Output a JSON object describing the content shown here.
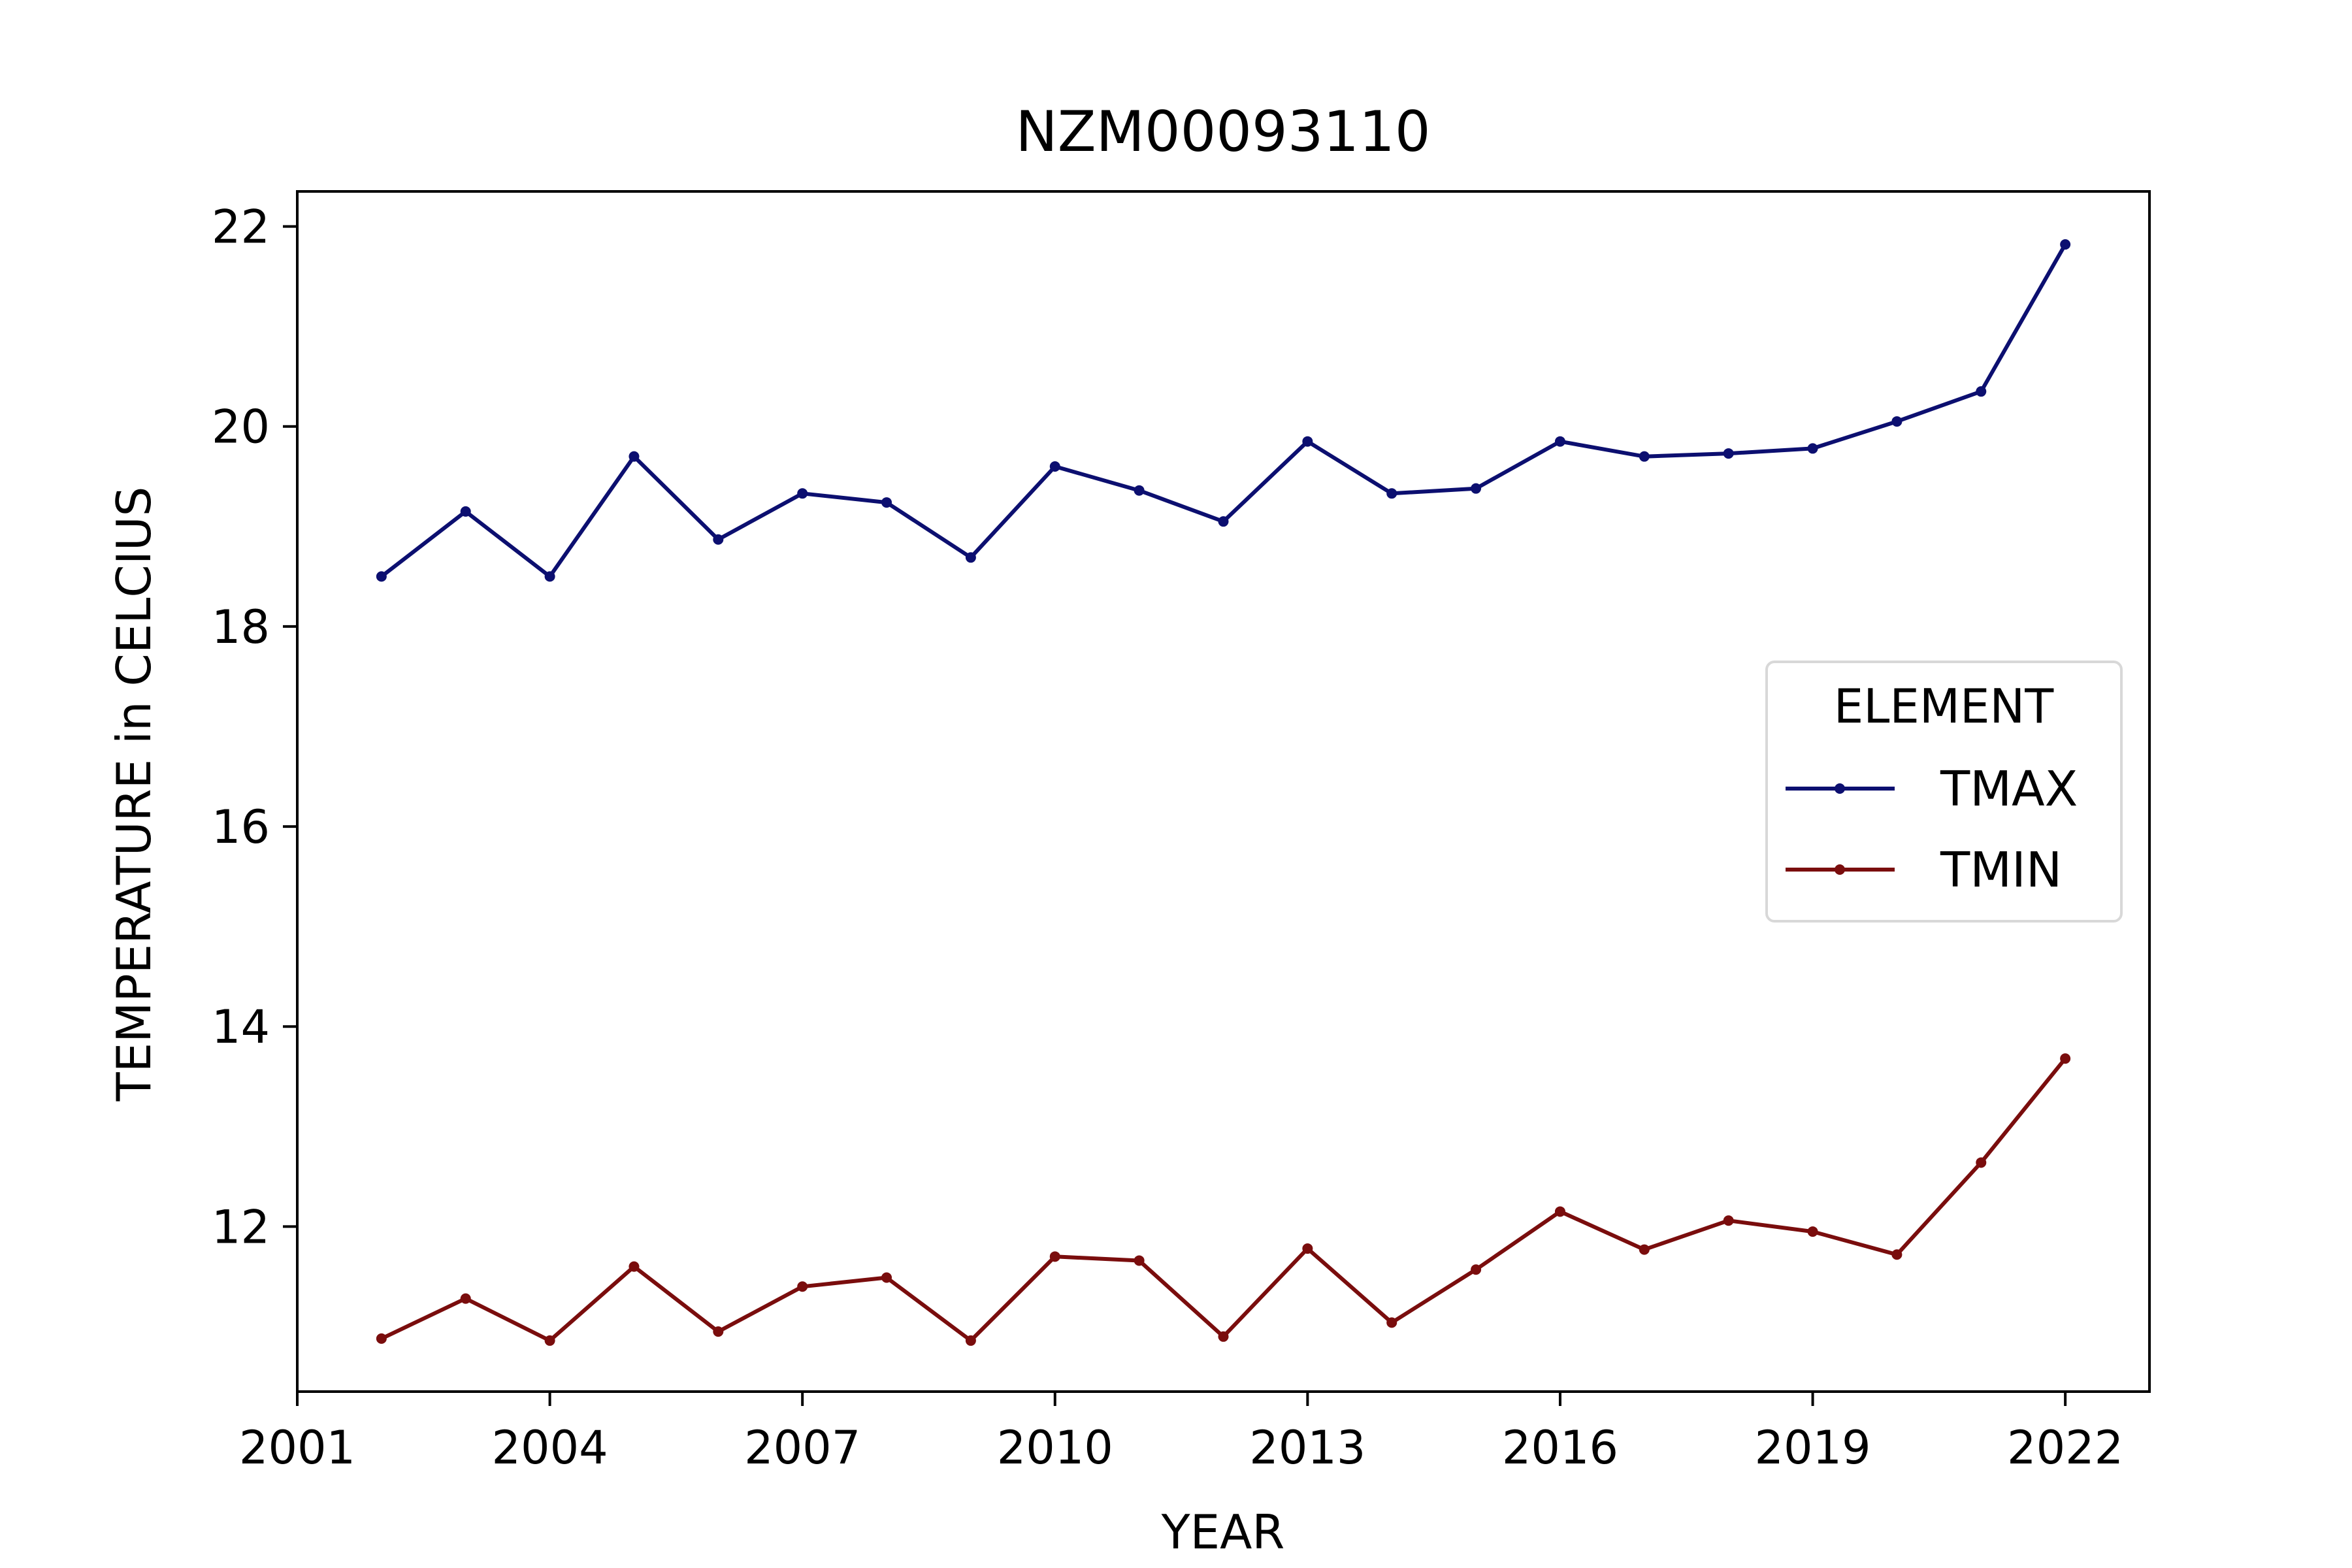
{
  "chart_data": {
    "type": "line",
    "title": "NZM00093110",
    "xlabel": "YEAR",
    "ylabel": "TEMPERATURE in CELCIUS",
    "xlim": [
      2001,
      2023
    ],
    "ylim": [
      10.35,
      22.35
    ],
    "xticks": [
      2001,
      2004,
      2007,
      2010,
      2013,
      2016,
      2019,
      2022
    ],
    "yticks": [
      12,
      14,
      16,
      18,
      20,
      22
    ],
    "grid": false,
    "legend": {
      "title": "ELEMENT",
      "placement": "center-right"
    },
    "x": [
      2002,
      2003,
      2004,
      2005,
      2006,
      2007,
      2008,
      2009,
      2010,
      2011,
      2012,
      2013,
      2014,
      2015,
      2016,
      2017,
      2018,
      2019,
      2020,
      2021,
      2022
    ],
    "series": [
      {
        "name": "TMAX",
        "color": "#0c0f70",
        "values": [
          18.5,
          19.15,
          18.5,
          19.7,
          18.87,
          19.33,
          19.24,
          18.69,
          19.6,
          19.36,
          19.05,
          19.85,
          19.33,
          19.38,
          19.85,
          19.7,
          19.73,
          19.78,
          20.05,
          20.35,
          21.82
        ]
      },
      {
        "name": "TMIN",
        "color": "#7a0d0d",
        "values": [
          10.88,
          11.28,
          10.86,
          11.6,
          10.95,
          11.4,
          11.49,
          10.86,
          11.7,
          11.66,
          10.9,
          11.78,
          11.04,
          11.57,
          12.15,
          11.77,
          12.06,
          11.95,
          11.72,
          12.64,
          13.68
        ]
      }
    ]
  }
}
